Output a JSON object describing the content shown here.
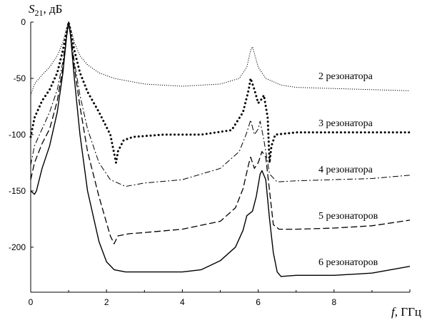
{
  "chart_data": {
    "type": "line",
    "ylabel": {
      "symbol": "S",
      "subscript": "21",
      "unit": ", дБ"
    },
    "xlabel": {
      "symbol": "f",
      "unit": ", ГГц"
    },
    "xlim": [
      0,
      10
    ],
    "ylim": [
      -240,
      0
    ],
    "xticks": [
      0,
      2,
      4,
      6,
      8
    ],
    "yticks": [
      0,
      -50,
      -100,
      -150,
      -200
    ],
    "grid": false,
    "series": [
      {
        "name": "2 резонатора",
        "style": "dotted-fine",
        "points": [
          [
            0,
            -65
          ],
          [
            0.1,
            -55
          ],
          [
            0.3,
            -47
          ],
          [
            0.5,
            -40
          ],
          [
            0.7,
            -30
          ],
          [
            0.85,
            -18
          ],
          [
            0.95,
            -5
          ],
          [
            1.0,
            0
          ],
          [
            1.05,
            -5
          ],
          [
            1.15,
            -18
          ],
          [
            1.3,
            -30
          ],
          [
            1.5,
            -38
          ],
          [
            1.8,
            -45
          ],
          [
            2.2,
            -50
          ],
          [
            3,
            -55
          ],
          [
            4,
            -57
          ],
          [
            5,
            -55
          ],
          [
            5.5,
            -50
          ],
          [
            5.7,
            -40
          ],
          [
            5.8,
            -25
          ],
          [
            5.85,
            -22
          ],
          [
            5.9,
            -28
          ],
          [
            6.0,
            -40
          ],
          [
            6.2,
            -50
          ],
          [
            6.6,
            -56
          ],
          [
            7,
            -58
          ],
          [
            8,
            -59
          ],
          [
            9,
            -60
          ],
          [
            10,
            -61
          ]
        ]
      },
      {
        "name": "3 резонатора",
        "style": "dotted-bold",
        "points": [
          [
            0,
            -102
          ],
          [
            0.1,
            -85
          ],
          [
            0.3,
            -70
          ],
          [
            0.5,
            -60
          ],
          [
            0.7,
            -45
          ],
          [
            0.85,
            -25
          ],
          [
            0.95,
            -8
          ],
          [
            1.0,
            0
          ],
          [
            1.05,
            -8
          ],
          [
            1.15,
            -25
          ],
          [
            1.3,
            -45
          ],
          [
            1.5,
            -62
          ],
          [
            1.8,
            -80
          ],
          [
            2.1,
            -100
          ],
          [
            2.25,
            -125
          ],
          [
            2.3,
            -115
          ],
          [
            2.45,
            -105
          ],
          [
            2.7,
            -102
          ],
          [
            3.5,
            -100
          ],
          [
            4.5,
            -100
          ],
          [
            5.3,
            -96
          ],
          [
            5.6,
            -80
          ],
          [
            5.75,
            -60
          ],
          [
            5.8,
            -50
          ],
          [
            5.9,
            -60
          ],
          [
            6.0,
            -72
          ],
          [
            6.1,
            -68
          ],
          [
            6.15,
            -65
          ],
          [
            6.25,
            -85
          ],
          [
            6.3,
            -125
          ],
          [
            6.35,
            -110
          ],
          [
            6.45,
            -100
          ],
          [
            7,
            -98
          ],
          [
            8,
            -98
          ],
          [
            9,
            -98
          ],
          [
            10,
            -98
          ]
        ]
      },
      {
        "name": "4 резонатора",
        "style": "dash-dot",
        "points": [
          [
            0,
            -127
          ],
          [
            0.1,
            -110
          ],
          [
            0.3,
            -95
          ],
          [
            0.5,
            -80
          ],
          [
            0.7,
            -60
          ],
          [
            0.85,
            -35
          ],
          [
            0.95,
            -10
          ],
          [
            1.0,
            0
          ],
          [
            1.05,
            -10
          ],
          [
            1.15,
            -35
          ],
          [
            1.3,
            -65
          ],
          [
            1.5,
            -95
          ],
          [
            1.8,
            -125
          ],
          [
            2.1,
            -140
          ],
          [
            2.5,
            -146
          ],
          [
            3,
            -143
          ],
          [
            4,
            -140
          ],
          [
            5,
            -130
          ],
          [
            5.5,
            -115
          ],
          [
            5.7,
            -98
          ],
          [
            5.8,
            -87
          ],
          [
            5.9,
            -100
          ],
          [
            6.0,
            -95
          ],
          [
            6.05,
            -88
          ],
          [
            6.15,
            -105
          ],
          [
            6.3,
            -135
          ],
          [
            6.5,
            -142
          ],
          [
            7,
            -141
          ],
          [
            8,
            -140
          ],
          [
            9,
            -139
          ],
          [
            10,
            -136
          ]
        ]
      },
      {
        "name": "5 резонаторов",
        "style": "dashed",
        "points": [
          [
            0,
            -140
          ],
          [
            0.1,
            -125
          ],
          [
            0.3,
            -108
          ],
          [
            0.5,
            -95
          ],
          [
            0.7,
            -70
          ],
          [
            0.85,
            -40
          ],
          [
            0.95,
            -12
          ],
          [
            1.0,
            0
          ],
          [
            1.05,
            -12
          ],
          [
            1.15,
            -40
          ],
          [
            1.3,
            -75
          ],
          [
            1.5,
            -115
          ],
          [
            1.8,
            -155
          ],
          [
            2.1,
            -190
          ],
          [
            2.2,
            -197
          ],
          [
            2.3,
            -190
          ],
          [
            2.6,
            -188
          ],
          [
            3,
            -187
          ],
          [
            4,
            -184
          ],
          [
            5,
            -177
          ],
          [
            5.4,
            -165
          ],
          [
            5.6,
            -148
          ],
          [
            5.75,
            -126
          ],
          [
            5.8,
            -120
          ],
          [
            5.9,
            -130
          ],
          [
            6.0,
            -125
          ],
          [
            6.1,
            -115
          ],
          [
            6.2,
            -120
          ],
          [
            6.3,
            -150
          ],
          [
            6.4,
            -180
          ],
          [
            6.55,
            -184
          ],
          [
            7,
            -184
          ],
          [
            8,
            -183
          ],
          [
            9,
            -181
          ],
          [
            10,
            -176
          ]
        ]
      },
      {
        "name": "6 резонаторов",
        "style": "solid",
        "points": [
          [
            0,
            -150
          ],
          [
            0.1,
            -153
          ],
          [
            0.15,
            -150
          ],
          [
            0.3,
            -130
          ],
          [
            0.5,
            -110
          ],
          [
            0.7,
            -80
          ],
          [
            0.85,
            -45
          ],
          [
            0.95,
            -12
          ],
          [
            1.0,
            0
          ],
          [
            1.05,
            -12
          ],
          [
            1.15,
            -50
          ],
          [
            1.3,
            -100
          ],
          [
            1.5,
            -150
          ],
          [
            1.8,
            -195
          ],
          [
            2.0,
            -213
          ],
          [
            2.2,
            -220
          ],
          [
            2.5,
            -222
          ],
          [
            3,
            -222
          ],
          [
            3.5,
            -222
          ],
          [
            4,
            -222
          ],
          [
            4.5,
            -220
          ],
          [
            5,
            -212
          ],
          [
            5.4,
            -200
          ],
          [
            5.6,
            -185
          ],
          [
            5.7,
            -172
          ],
          [
            5.85,
            -168
          ],
          [
            5.95,
            -155
          ],
          [
            6.05,
            -135
          ],
          [
            6.1,
            -132
          ],
          [
            6.2,
            -140
          ],
          [
            6.3,
            -175
          ],
          [
            6.4,
            -205
          ],
          [
            6.5,
            -222
          ],
          [
            6.6,
            -226
          ],
          [
            7,
            -225
          ],
          [
            8,
            -225
          ],
          [
            9,
            -223
          ],
          [
            10,
            -217
          ]
        ]
      }
    ]
  }
}
